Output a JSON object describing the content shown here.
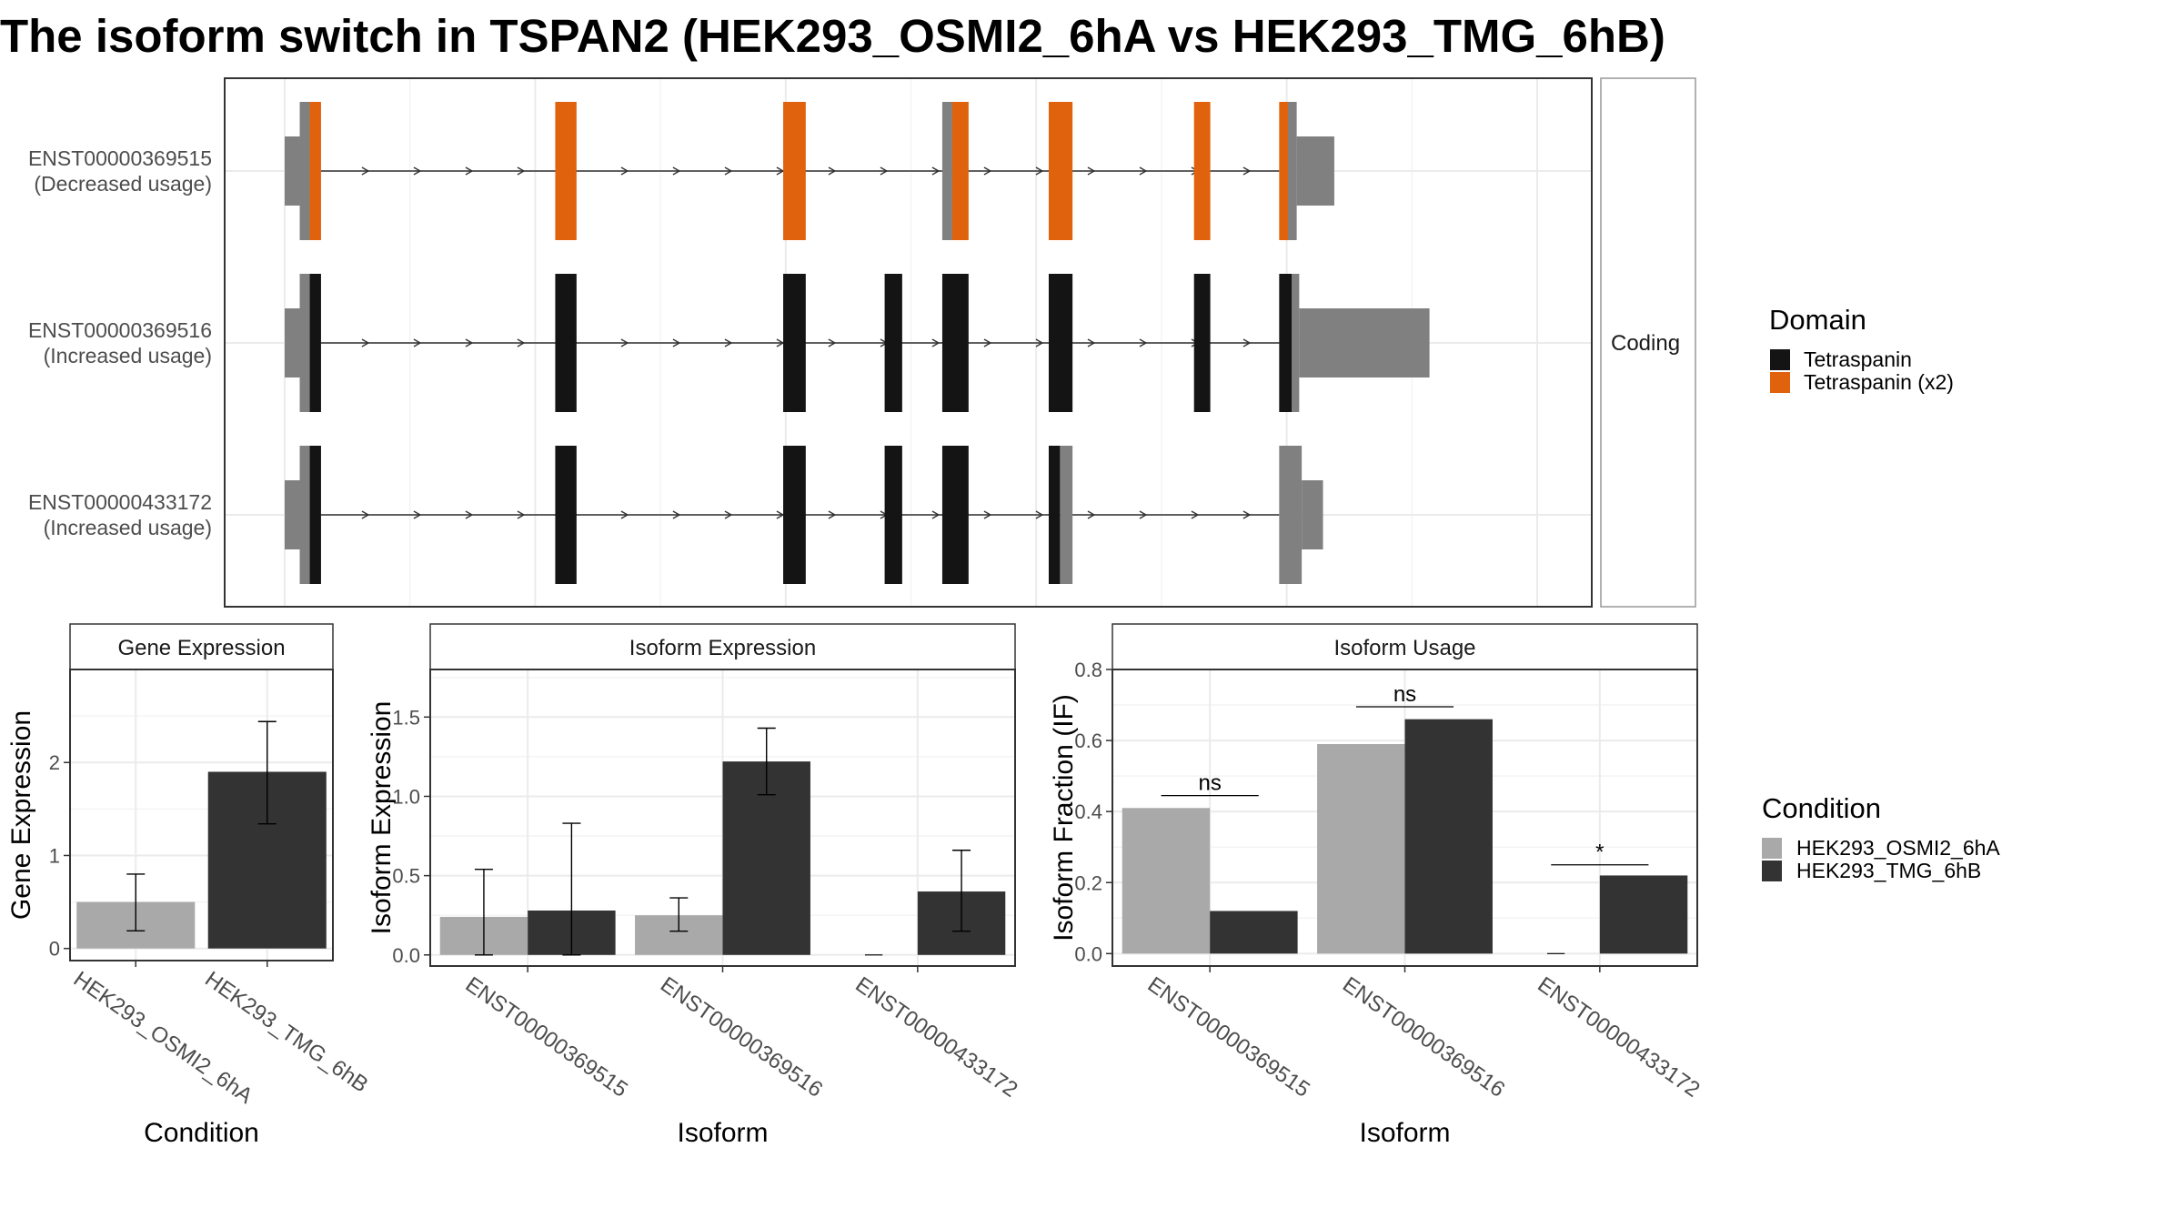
{
  "title": "The isoform switch in TSPAN2 (HEK293_OSMI2_6hA vs HEK293_TMG_6hB)",
  "colors": {
    "tetraspanin": "#141414",
    "tetraspanin_x2": "#E0620D",
    "utr": "#808080",
    "cond_a": "#A9A9A9",
    "cond_b": "#333333",
    "panel_border": "#333333",
    "strip_border": "#999999",
    "grid": "#EBEBEB",
    "intron": "#333333"
  },
  "structure": {
    "strip_label": "Coding",
    "x_range": [
      0,
      100
    ],
    "tracks": [
      {
        "id": "ENST00000369515",
        "line1": "ENST00000369515",
        "line2": "(Decreased usage)",
        "intron": [
          2.9,
          79.4
        ],
        "utr_blocks": [
          {
            "x": [
              0.0,
              1.2
            ],
            "h": "small"
          },
          {
            "x": [
              1.2,
              2.0
            ],
            "h": "large"
          },
          {
            "x": [
              52.5,
              53.3
            ],
            "h": "large"
          },
          {
            "x": [
              80.1,
              80.8
            ],
            "h": "large"
          },
          {
            "x": [
              80.8,
              83.8
            ],
            "h": "small"
          }
        ],
        "cds_blocks": [
          {
            "x": [
              2.0,
              2.9
            ],
            "domain": "Tetraspanin (x2)"
          },
          {
            "x": [
              21.6,
              23.3
            ],
            "domain": "Tetraspanin (x2)"
          },
          {
            "x": [
              39.8,
              41.6
            ],
            "domain": "Tetraspanin (x2)"
          },
          {
            "x": [
              53.3,
              54.6
            ],
            "domain": "Tetraspanin (x2)"
          },
          {
            "x": [
              61.0,
              62.9
            ],
            "domain": "Tetraspanin (x2)"
          },
          {
            "x": [
              72.6,
              73.9
            ],
            "domain": "Tetraspanin (x2)"
          },
          {
            "x": [
              79.4,
              80.1
            ],
            "domain": "Tetraspanin (x2)"
          }
        ]
      },
      {
        "id": "ENST00000369516",
        "line1": "ENST00000369516",
        "line2": "(Increased usage)",
        "intron": [
          2.9,
          79.4
        ],
        "utr_blocks": [
          {
            "x": [
              0.0,
              1.2
            ],
            "h": "small"
          },
          {
            "x": [
              1.2,
              2.0
            ],
            "h": "large"
          },
          {
            "x": [
              80.4,
              81.0
            ],
            "h": "large"
          },
          {
            "x": [
              81.0,
              91.4
            ],
            "h": "small"
          }
        ],
        "cds_blocks": [
          {
            "x": [
              2.0,
              2.9
            ],
            "domain": "Tetraspanin"
          },
          {
            "x": [
              21.6,
              23.3
            ],
            "domain": "Tetraspanin"
          },
          {
            "x": [
              39.8,
              41.6
            ],
            "domain": "Tetraspanin"
          },
          {
            "x": [
              47.9,
              49.3
            ],
            "domain": "Tetraspanin"
          },
          {
            "x": [
              52.5,
              54.6
            ],
            "domain": "Tetraspanin"
          },
          {
            "x": [
              61.0,
              62.9
            ],
            "domain": "Tetraspanin"
          },
          {
            "x": [
              72.6,
              73.9
            ],
            "domain": "Tetraspanin"
          },
          {
            "x": [
              79.4,
              80.4
            ],
            "domain": "Tetraspanin"
          }
        ]
      },
      {
        "id": "ENST00000433172",
        "line1": "ENST00000433172",
        "line2": "(Increased usage)",
        "intron": [
          2.9,
          79.4
        ],
        "utr_blocks": [
          {
            "x": [
              0.0,
              1.2
            ],
            "h": "small"
          },
          {
            "x": [
              1.2,
              2.0
            ],
            "h": "large"
          },
          {
            "x": [
              61.9,
              62.9
            ],
            "h": "large"
          },
          {
            "x": [
              79.4,
              81.2
            ],
            "h": "large"
          },
          {
            "x": [
              81.2,
              82.9
            ],
            "h": "small"
          }
        ],
        "cds_blocks": [
          {
            "x": [
              2.0,
              2.9
            ],
            "domain": "Tetraspanin"
          },
          {
            "x": [
              21.6,
              23.3
            ],
            "domain": "Tetraspanin"
          },
          {
            "x": [
              39.8,
              41.6
            ],
            "domain": "Tetraspanin"
          },
          {
            "x": [
              47.9,
              49.3
            ],
            "domain": "Tetraspanin"
          },
          {
            "x": [
              52.5,
              54.6
            ],
            "domain": "Tetraspanin"
          },
          {
            "x": [
              61.0,
              61.9
            ],
            "domain": "Tetraspanin"
          }
        ]
      }
    ]
  },
  "legend_domain": {
    "title": "Domain",
    "items": [
      "Tetraspanin",
      "Tetraspanin (x2)"
    ]
  },
  "legend_condition": {
    "title": "Condition",
    "items": [
      "HEK293_OSMI2_6hA",
      "HEK293_TMG_6hB"
    ]
  },
  "chart_data": [
    {
      "type": "bar",
      "title": "Gene Expression",
      "xlabel": "Condition",
      "ylabel": "Gene Expression",
      "ylim": [
        -0.13,
        3.0
      ],
      "yticks": [
        0,
        1,
        2
      ],
      "categories": [
        "HEK293_OSMI2_6hA",
        "HEK293_TMG_6hB"
      ],
      "values": [
        0.5,
        1.9
      ],
      "err_low": [
        0.19,
        1.34
      ],
      "err_high": [
        0.8,
        2.44
      ]
    },
    {
      "type": "bar",
      "title": "Isoform Expression",
      "xlabel": "Isoform",
      "ylabel": "Isoform Expression",
      "ylim": [
        -0.07,
        1.8
      ],
      "yticks": [
        0.0,
        0.5,
        1.0,
        1.5
      ],
      "categories": [
        "ENST00000369515",
        "ENST00000369516",
        "ENST00000433172"
      ],
      "series": [
        {
          "name": "HEK293_OSMI2_6hA",
          "values": [
            0.24,
            0.25,
            0.0
          ],
          "err_low": [
            0.0,
            0.15,
            0.0
          ],
          "err_high": [
            0.54,
            0.36,
            0.0
          ]
        },
        {
          "name": "HEK293_TMG_6hB",
          "values": [
            0.28,
            1.22,
            0.4
          ],
          "err_low": [
            0.0,
            1.01,
            0.15
          ],
          "err_high": [
            0.83,
            1.43,
            0.66
          ]
        }
      ]
    },
    {
      "type": "bar",
      "title": "Isoform Usage",
      "xlabel": "Isoform",
      "ylabel": "Isoform Fraction (IF)",
      "ylim": [
        -0.035,
        0.8
      ],
      "yticks": [
        0.0,
        0.2,
        0.4,
        0.6,
        0.8
      ],
      "categories": [
        "ENST00000369515",
        "ENST00000369516",
        "ENST00000433172"
      ],
      "series": [
        {
          "name": "HEK293_OSMI2_6hA",
          "values": [
            0.41,
            0.59,
            0.0
          ]
        },
        {
          "name": "HEK293_TMG_6hB",
          "values": [
            0.12,
            0.66,
            0.22
          ]
        }
      ],
      "significance": [
        {
          "label": "ns",
          "y": 0.445
        },
        {
          "label": "ns",
          "y": 0.695
        },
        {
          "label": "*",
          "y": 0.25
        }
      ]
    }
  ]
}
